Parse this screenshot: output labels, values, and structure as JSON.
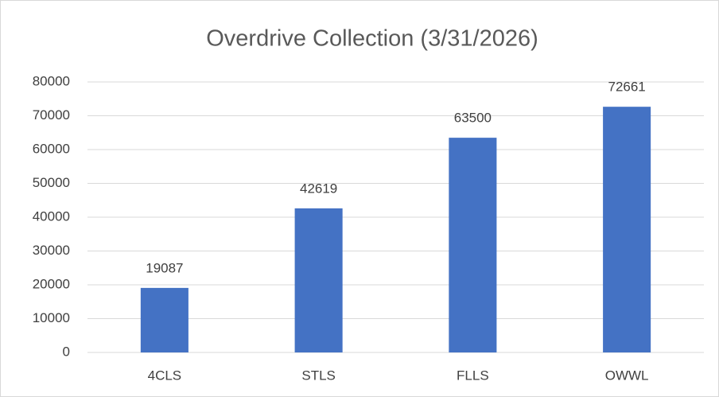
{
  "chart_data": {
    "type": "bar",
    "title": "Overdrive Collection (3/31/2026)",
    "categories": [
      "4CLS",
      "STLS",
      "FLLS",
      "OWWL"
    ],
    "values": [
      19087,
      42619,
      63500,
      72661
    ],
    "color": "#4472c4",
    "ylim": [
      0,
      80000
    ],
    "yticks": [
      0,
      10000,
      20000,
      30000,
      40000,
      50000,
      60000,
      70000,
      80000
    ],
    "grid": true,
    "data_labels": true
  }
}
